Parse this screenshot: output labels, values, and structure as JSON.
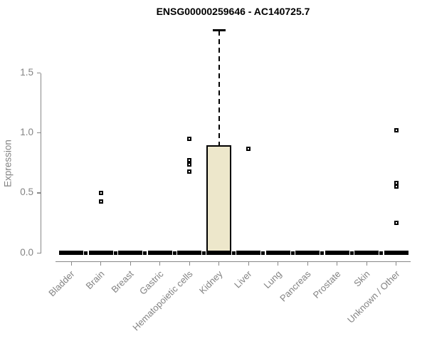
{
  "chart_data": {
    "type": "boxplot",
    "title": "ENSG00000259646 - AC140725.7",
    "ylabel": "Expression",
    "xlabel": "",
    "ylim": [
      0,
      1.9
    ],
    "grid": false,
    "legend": false,
    "yticks": [
      {
        "label": "0.0",
        "value": 0.0
      },
      {
        "label": "0.5",
        "value": 0.5
      },
      {
        "label": "1.0",
        "value": 1.0
      },
      {
        "label": "1.5",
        "value": 1.5
      }
    ],
    "categories": [
      "Bladder",
      "Brain",
      "Breast",
      "Gastric",
      "Hematopoietic cells",
      "Kidney",
      "Liver",
      "Lung",
      "Pancreas",
      "Prostate",
      "Skin",
      "Unknown / Other"
    ],
    "boxes": [
      {
        "category": "Bladder",
        "median": 0,
        "q1": 0,
        "q3": 0,
        "whisker_low": 0,
        "whisker_high": 0,
        "outliers": []
      },
      {
        "category": "Brain",
        "median": 0,
        "q1": 0,
        "q3": 0,
        "whisker_low": 0,
        "whisker_high": 0,
        "outliers": [
          0.5,
          0.43
        ]
      },
      {
        "category": "Breast",
        "median": 0,
        "q1": 0,
        "q3": 0,
        "whisker_low": 0,
        "whisker_high": 0,
        "outliers": []
      },
      {
        "category": "Gastric",
        "median": 0,
        "q1": 0,
        "q3": 0,
        "whisker_low": 0,
        "whisker_high": 0,
        "outliers": []
      },
      {
        "category": "Hematopoietic cells",
        "median": 0,
        "q1": 0,
        "q3": 0,
        "whisker_low": 0,
        "whisker_high": 0,
        "outliers": [
          0.95,
          0.77,
          0.74,
          0.68
        ]
      },
      {
        "category": "Kidney",
        "median": 0,
        "q1": 0,
        "q3": 0.9,
        "whisker_low": 0,
        "whisker_high": 1.86,
        "outliers": []
      },
      {
        "category": "Liver",
        "median": 0,
        "q1": 0,
        "q3": 0,
        "whisker_low": 0,
        "whisker_high": 0,
        "outliers": [
          0.87
        ]
      },
      {
        "category": "Lung",
        "median": 0,
        "q1": 0,
        "q3": 0,
        "whisker_low": 0,
        "whisker_high": 0,
        "outliers": []
      },
      {
        "category": "Pancreas",
        "median": 0,
        "q1": 0,
        "q3": 0,
        "whisker_low": 0,
        "whisker_high": 0,
        "outliers": []
      },
      {
        "category": "Prostate",
        "median": 0,
        "q1": 0,
        "q3": 0,
        "whisker_low": 0,
        "whisker_high": 0,
        "outliers": []
      },
      {
        "category": "Skin",
        "median": 0,
        "q1": 0,
        "q3": 0,
        "whisker_low": 0,
        "whisker_high": 0,
        "outliers": []
      },
      {
        "category": "Unknown / Other",
        "median": 0,
        "q1": 0,
        "q3": 0,
        "whisker_low": 0,
        "whisker_high": 0,
        "outliers": [
          1.02,
          0.58,
          0.55,
          0.25
        ]
      }
    ],
    "colors": {
      "box_fill": "#EDE7CB",
      "box_stroke": "#000000",
      "axis": "#888888",
      "tick_label": "#838383",
      "title": "#000000",
      "outlier": "#000000"
    }
  }
}
